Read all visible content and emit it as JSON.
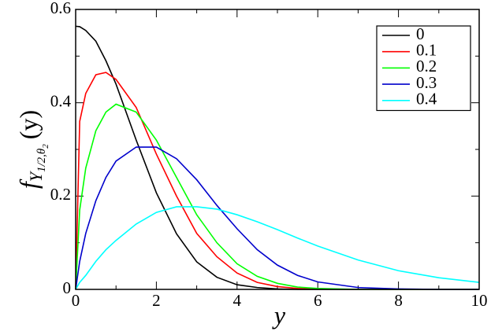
{
  "chart_data": {
    "type": "line",
    "xlabel": "y",
    "ylabel_parts": [
      "f",
      "Y",
      "1/2,θ",
      "2",
      "(y)"
    ],
    "x": [
      0,
      0.1,
      0.25,
      0.5,
      0.75,
      1,
      1.5,
      2,
      2.5,
      3,
      3.5,
      4,
      4.5,
      5,
      5.5,
      6,
      7,
      8,
      9,
      10
    ],
    "series": [
      {
        "name": "0",
        "color": "#000000",
        "values": [
          0.564,
          0.563,
          0.555,
          0.532,
          0.49,
          0.44,
          0.32,
          0.207,
          0.119,
          0.059,
          0.026,
          0.01,
          0.004,
          0.001,
          0,
          0,
          0,
          0,
          0,
          0
        ]
      },
      {
        "name": "0.1",
        "color": "#ff0000",
        "values": [
          0,
          0.36,
          0.42,
          0.46,
          0.465,
          0.45,
          0.39,
          0.29,
          0.2,
          0.12,
          0.07,
          0.035,
          0.015,
          0.006,
          0.002,
          0.001,
          0,
          0,
          0,
          0
        ]
      },
      {
        "name": "0.2",
        "color": "#00ff00",
        "values": [
          0,
          0.17,
          0.26,
          0.34,
          0.38,
          0.397,
          0.38,
          0.32,
          0.24,
          0.16,
          0.1,
          0.055,
          0.028,
          0.013,
          0.005,
          0.002,
          0,
          0,
          0,
          0
        ]
      },
      {
        "name": "0.3",
        "color": "#0000cc",
        "values": [
          0,
          0.06,
          0.12,
          0.19,
          0.24,
          0.275,
          0.305,
          0.305,
          0.28,
          0.235,
          0.18,
          0.13,
          0.085,
          0.052,
          0.03,
          0.016,
          0.004,
          0.001,
          0,
          0
        ]
      },
      {
        "name": "0.4",
        "color": "#00ffff",
        "values": [
          0,
          0.015,
          0.03,
          0.06,
          0.085,
          0.105,
          0.14,
          0.165,
          0.177,
          0.177,
          0.172,
          0.16,
          0.145,
          0.128,
          0.11,
          0.093,
          0.063,
          0.04,
          0.025,
          0.015
        ]
      }
    ],
    "xlim": [
      0,
      10
    ],
    "xticks": [
      0,
      2,
      4,
      6,
      8,
      10
    ],
    "ylim": [
      0,
      0.6
    ],
    "yticks": [
      0,
      0.2,
      0.4,
      0.6
    ],
    "legend": "upper right"
  }
}
